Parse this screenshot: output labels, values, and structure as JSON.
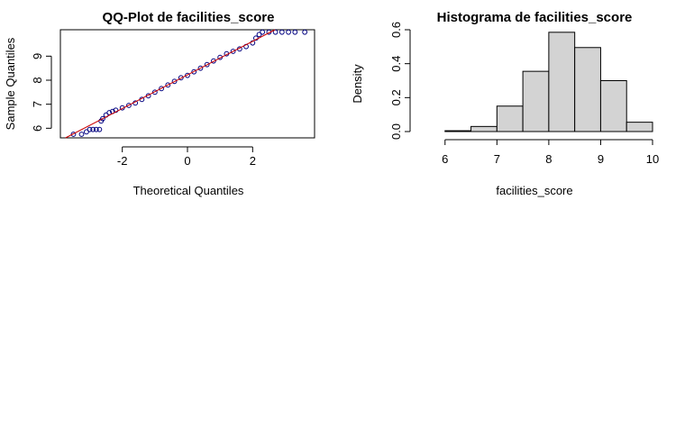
{
  "chart_data": [
    {
      "type": "scatter",
      "title": "QQ-Plot de facilities_score",
      "xlabel": "Theoretical Quantiles",
      "ylabel": "Sample Quantiles",
      "xlim": [
        -3.9,
        3.9
      ],
      "ylim": [
        5.6,
        10.1
      ],
      "x_ticks": [
        -2,
        0,
        2
      ],
      "y_ticks": [
        6,
        7,
        8,
        9
      ],
      "grid": false,
      "series": [
        {
          "points": [
            [
              -3.5,
              5.75
            ],
            [
              -3.25,
              5.75
            ],
            [
              -3.1,
              5.85
            ],
            [
              -3.0,
              5.95
            ],
            [
              -2.9,
              5.95
            ],
            [
              -2.8,
              5.95
            ],
            [
              -2.7,
              5.95
            ],
            [
              -2.65,
              6.3
            ],
            [
              -2.6,
              6.4
            ],
            [
              -2.5,
              6.55
            ],
            [
              -2.4,
              6.65
            ],
            [
              -2.3,
              6.7
            ],
            [
              -2.2,
              6.75
            ],
            [
              -2.0,
              6.85
            ],
            [
              -1.8,
              6.95
            ],
            [
              -1.6,
              7.05
            ],
            [
              -1.4,
              7.2
            ],
            [
              -1.2,
              7.35
            ],
            [
              -1.0,
              7.5
            ],
            [
              -0.8,
              7.65
            ],
            [
              -0.6,
              7.8
            ],
            [
              -0.4,
              7.95
            ],
            [
              -0.2,
              8.1
            ],
            [
              0.0,
              8.2
            ],
            [
              0.2,
              8.35
            ],
            [
              0.4,
              8.5
            ],
            [
              0.6,
              8.65
            ],
            [
              0.8,
              8.8
            ],
            [
              1.0,
              8.95
            ],
            [
              1.2,
              9.1
            ],
            [
              1.4,
              9.2
            ],
            [
              1.6,
              9.3
            ],
            [
              1.8,
              9.4
            ],
            [
              2.0,
              9.55
            ],
            [
              2.1,
              9.75
            ],
            [
              2.2,
              9.9
            ],
            [
              2.3,
              10.0
            ],
            [
              2.5,
              10.0
            ],
            [
              2.7,
              10.0
            ],
            [
              2.9,
              10.0
            ],
            [
              3.1,
              10.0
            ],
            [
              3.3,
              10.0
            ],
            [
              3.6,
              10.0
            ]
          ]
        }
      ],
      "reference_line": {
        "intercept": 8.22,
        "slope": 0.7
      },
      "colors": {
        "points": "#000080",
        "line": "#cc0000"
      }
    },
    {
      "type": "bar",
      "title": "Histograma de facilities_score",
      "xlabel": "facilities_score",
      "ylabel": "Density",
      "bins": [
        [
          5.5,
          6.0,
          0.0
        ],
        [
          6.0,
          6.5,
          0.005
        ],
        [
          6.5,
          7.0,
          0.03
        ],
        [
          7.0,
          7.5,
          0.15
        ],
        [
          7.5,
          8.0,
          0.355
        ],
        [
          8.0,
          8.5,
          0.585
        ],
        [
          8.5,
          9.0,
          0.495
        ],
        [
          9.0,
          9.5,
          0.3
        ],
        [
          9.5,
          10.0,
          0.055
        ]
      ],
      "xlim": [
        5.5,
        10.0
      ],
      "ylim": [
        0.0,
        0.6
      ],
      "x_ticks": [
        6,
        7,
        8,
        9,
        10
      ],
      "y_ticks": [
        0.0,
        0.2,
        0.4,
        0.6
      ],
      "grid": false,
      "colors": {
        "bar_fill": "#d3d3d3",
        "bar_stroke": "#000000"
      }
    }
  ]
}
